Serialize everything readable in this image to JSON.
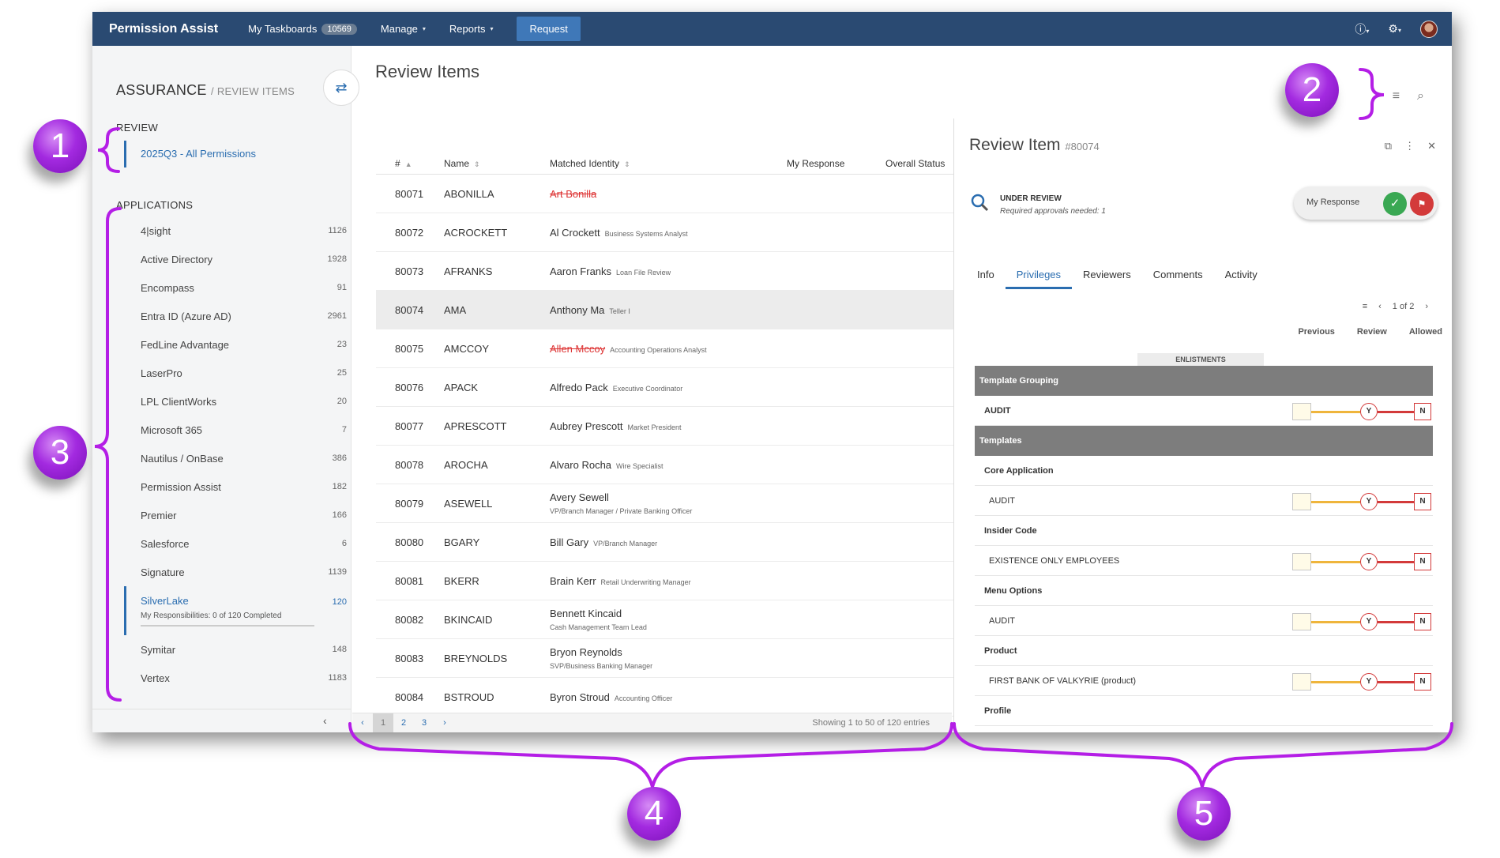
{
  "topnav": {
    "brand": "Permission Assist",
    "taskboards_label": "My Taskboards",
    "taskboards_count": "10569",
    "manage_label": "Manage",
    "reports_label": "Reports",
    "request_label": "Request"
  },
  "sidebar": {
    "title": "ASSURANCE",
    "title_sub": "/ REVIEW ITEMS",
    "review_header": "REVIEW",
    "review_item": "2025Q3 - All Permissions",
    "applications_header": "APPLICATIONS",
    "apps": [
      {
        "label": "4|sight",
        "count": "1126"
      },
      {
        "label": "Active Directory",
        "count": "1928"
      },
      {
        "label": "Encompass",
        "count": "91"
      },
      {
        "label": "Entra ID (Azure AD)",
        "count": "2961"
      },
      {
        "label": "FedLine Advantage",
        "count": "23"
      },
      {
        "label": "LaserPro",
        "count": "25"
      },
      {
        "label": "LPL ClientWorks",
        "count": "20"
      },
      {
        "label": "Microsoft 365",
        "count": "7"
      },
      {
        "label": "Nautilus / OnBase",
        "count": "386"
      },
      {
        "label": "Permission Assist",
        "count": "182"
      },
      {
        "label": "Premier",
        "count": "166"
      },
      {
        "label": "Salesforce",
        "count": "6"
      },
      {
        "label": "Signature",
        "count": "1139"
      },
      {
        "label": "SilverLake",
        "count": "120",
        "responsibilities": "My Responsibilities: 0 of 120 Completed",
        "active": true
      },
      {
        "label": "Symitar",
        "count": "148"
      },
      {
        "label": "Vertex",
        "count": "1183"
      }
    ]
  },
  "main": {
    "title": "Review Items",
    "columns": [
      "#",
      "Name",
      "Matched Identity",
      "My Response",
      "Overall Status"
    ],
    "rows": [
      {
        "num": "80071",
        "name": "ABONILLA",
        "ident": "Art Bonilla",
        "sub": "",
        "strike": true
      },
      {
        "num": "80072",
        "name": "ACROCKETT",
        "ident": "Al Crockett",
        "sub": "Business Systems Analyst"
      },
      {
        "num": "80073",
        "name": "AFRANKS",
        "ident": "Aaron Franks",
        "sub": "Loan File Review"
      },
      {
        "num": "80074",
        "name": "AMA",
        "ident": "Anthony Ma",
        "sub": "Teller I",
        "selected": true
      },
      {
        "num": "80075",
        "name": "AMCCOY",
        "ident": "Allen Mccoy",
        "sub": "Accounting Operations Analyst",
        "strike": true
      },
      {
        "num": "80076",
        "name": "APACK",
        "ident": "Alfredo Pack",
        "sub": "Executive Coordinator"
      },
      {
        "num": "80077",
        "name": "APRESCOTT",
        "ident": "Aubrey Prescott",
        "sub": "Market President"
      },
      {
        "num": "80078",
        "name": "AROCHA",
        "ident": "Alvaro Rocha",
        "sub": "Wire Specialist"
      },
      {
        "num": "80079",
        "name": "ASEWELL",
        "ident": "Avery Sewell",
        "sub": "VP/Branch Manager / Private Banking Officer",
        "block": true
      },
      {
        "num": "80080",
        "name": "BGARY",
        "ident": "Bill Gary",
        "sub": "VP/Branch Manager"
      },
      {
        "num": "80081",
        "name": "BKERR",
        "ident": "Brain Kerr",
        "sub": "Retail Underwriting Manager"
      },
      {
        "num": "80082",
        "name": "BKINCAID",
        "ident": "Bennett Kincaid",
        "sub": "Cash Management Team Lead",
        "block": true
      },
      {
        "num": "80083",
        "name": "BREYNOLDS",
        "ident": "Bryon Reynolds",
        "sub": "SVP/Business Banking Manager",
        "block": true
      },
      {
        "num": "80084",
        "name": "BSTROUD",
        "ident": "Byron Stroud",
        "sub": "Accounting Officer"
      }
    ],
    "pages": [
      "1",
      "2",
      "3"
    ],
    "showing": "Showing 1 to 50 of 120 entries"
  },
  "detail": {
    "title": "Review Item",
    "id": "#80074",
    "status": "UNDER REVIEW",
    "status_sub": "Required approvals needed: 1",
    "my_response": "My Response",
    "tabs": [
      "Info",
      "Privileges",
      "Reviewers",
      "Comments",
      "Activity"
    ],
    "active_tab": "Privileges",
    "pager": "1 of 2",
    "cols": [
      "Previous",
      "Review",
      "Allowed"
    ],
    "enlistments": "ENLISTMENTS",
    "grid": [
      {
        "type": "group",
        "label": "Template Grouping"
      },
      {
        "type": "row",
        "label": "AUDIT",
        "bold": true
      },
      {
        "type": "group",
        "label": "Templates"
      },
      {
        "type": "header",
        "label": "Core Application"
      },
      {
        "type": "row",
        "label": "AUDIT"
      },
      {
        "type": "header",
        "label": "Insider Code"
      },
      {
        "type": "row",
        "label": "EXISTENCE ONLY EMPLOYEES"
      },
      {
        "type": "header",
        "label": "Menu Options"
      },
      {
        "type": "row",
        "label": "AUDIT"
      },
      {
        "type": "header",
        "label": "Product"
      },
      {
        "type": "row",
        "label": "FIRST BANK OF VALKYRIE (product)"
      },
      {
        "type": "header",
        "label": "Profile"
      }
    ],
    "toggle_y": "Y",
    "toggle_n": "N"
  },
  "callouts": [
    "1",
    "2",
    "3",
    "4",
    "5"
  ]
}
